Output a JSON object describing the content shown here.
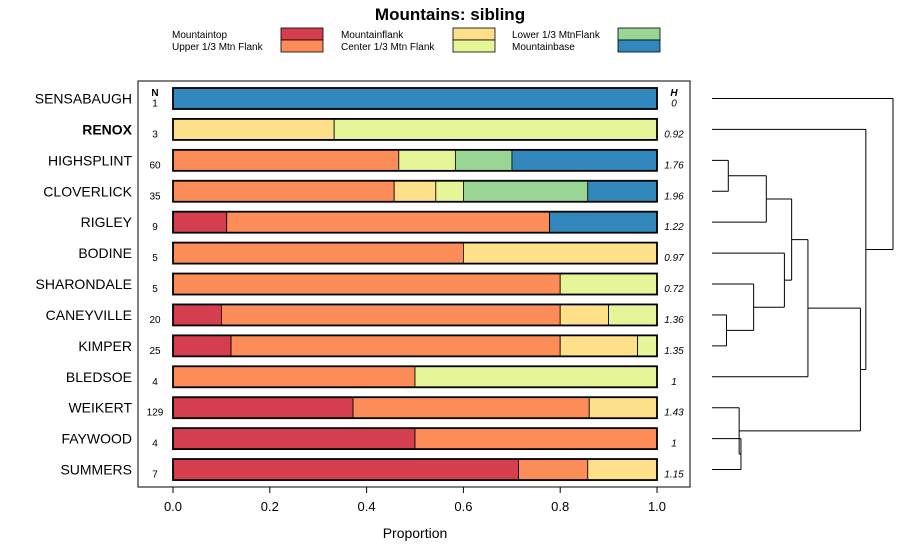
{
  "chart_data": {
    "type": "bar",
    "orientation": "horizontal",
    "stacked": "proportion",
    "title": "Mountains: sibling",
    "xlabel": "Proportion",
    "xlim": [
      0,
      1
    ],
    "xticks": [
      "0.0",
      "0.2",
      "0.4",
      "0.6",
      "0.8",
      "1.0"
    ],
    "n_header": "N",
    "h_header": "H",
    "series": [
      {
        "name": "Mountaintop",
        "color": "#d53e4f"
      },
      {
        "name": "Upper 1/3 Mtn Flank",
        "color": "#fc8d59"
      },
      {
        "name": "Mountainflank",
        "color": "#fee08b"
      },
      {
        "name": "Center 1/3 Mtn Flank",
        "color": "#e6f598"
      },
      {
        "name": "Lower 1/3 MtnFlank",
        "color": "#99d594"
      },
      {
        "name": "Mountainbase",
        "color": "#3288bd"
      }
    ],
    "legend_layout": [
      [
        "Mountaintop",
        "Mountainflank",
        "Lower 1/3 MtnFlank"
      ],
      [
        "Upper 1/3 Mtn Flank",
        "Center 1/3 Mtn Flank",
        "Mountainbase"
      ]
    ],
    "categories": [
      {
        "label": "SENSABAUGH",
        "n": "1",
        "h": "0",
        "bold": false,
        "segments": [
          {
            "series": "Mountainbase",
            "value": 1.0
          }
        ]
      },
      {
        "label": "RENOX",
        "n": "3",
        "h": "0.92",
        "bold": true,
        "segments": [
          {
            "series": "Mountainflank",
            "value": 0.333
          },
          {
            "series": "Center 1/3 Mtn Flank",
            "value": 0.667
          }
        ]
      },
      {
        "label": "HIGHSPLINT",
        "n": "60",
        "h": "1.76",
        "bold": false,
        "segments": [
          {
            "series": "Upper 1/3 Mtn Flank",
            "value": 0.467
          },
          {
            "series": "Center 1/3 Mtn Flank",
            "value": 0.117
          },
          {
            "series": "Lower 1/3 MtnFlank",
            "value": 0.117
          },
          {
            "series": "Mountainbase",
            "value": 0.3
          }
        ]
      },
      {
        "label": "CLOVERLICK",
        "n": "35",
        "h": "1.96",
        "bold": false,
        "segments": [
          {
            "series": "Upper 1/3 Mtn Flank",
            "value": 0.457
          },
          {
            "series": "Mountainflank",
            "value": 0.086
          },
          {
            "series": "Center 1/3 Mtn Flank",
            "value": 0.057
          },
          {
            "series": "Lower 1/3 MtnFlank",
            "value": 0.257
          },
          {
            "series": "Mountainbase",
            "value": 0.143
          }
        ]
      },
      {
        "label": "RIGLEY",
        "n": "9",
        "h": "1.22",
        "bold": false,
        "segments": [
          {
            "series": "Mountaintop",
            "value": 0.111
          },
          {
            "series": "Upper 1/3 Mtn Flank",
            "value": 0.667
          },
          {
            "series": "Mountainbase",
            "value": 0.222
          }
        ]
      },
      {
        "label": "BODINE",
        "n": "5",
        "h": "0.97",
        "bold": false,
        "segments": [
          {
            "series": "Upper 1/3 Mtn Flank",
            "value": 0.6
          },
          {
            "series": "Mountainflank",
            "value": 0.4
          }
        ]
      },
      {
        "label": "SHARONDALE",
        "n": "5",
        "h": "0.72",
        "bold": false,
        "segments": [
          {
            "series": "Upper 1/3 Mtn Flank",
            "value": 0.8
          },
          {
            "series": "Center 1/3 Mtn Flank",
            "value": 0.2
          }
        ]
      },
      {
        "label": "CANEYVILLE",
        "n": "20",
        "h": "1.36",
        "bold": false,
        "segments": [
          {
            "series": "Mountaintop",
            "value": 0.1
          },
          {
            "series": "Upper 1/3 Mtn Flank",
            "value": 0.7
          },
          {
            "series": "Mountainflank",
            "value": 0.1
          },
          {
            "series": "Center 1/3 Mtn Flank",
            "value": 0.1
          }
        ]
      },
      {
        "label": "KIMPER",
        "n": "25",
        "h": "1.35",
        "bold": false,
        "segments": [
          {
            "series": "Mountaintop",
            "value": 0.12
          },
          {
            "series": "Upper 1/3 Mtn Flank",
            "value": 0.68
          },
          {
            "series": "Mountainflank",
            "value": 0.16
          },
          {
            "series": "Center 1/3 Mtn Flank",
            "value": 0.04
          }
        ]
      },
      {
        "label": "BLEDSOE",
        "n": "4",
        "h": "1",
        "bold": false,
        "segments": [
          {
            "series": "Upper 1/3 Mtn Flank",
            "value": 0.5
          },
          {
            "series": "Center 1/3 Mtn Flank",
            "value": 0.5
          }
        ]
      },
      {
        "label": "WEIKERT",
        "n": "129",
        "h": "1.43",
        "bold": false,
        "segments": [
          {
            "series": "Mountaintop",
            "value": 0.372
          },
          {
            "series": "Upper 1/3 Mtn Flank",
            "value": 0.488
          },
          {
            "series": "Mountainflank",
            "value": 0.14
          }
        ]
      },
      {
        "label": "FAYWOOD",
        "n": "4",
        "h": "1",
        "bold": false,
        "segments": [
          {
            "series": "Mountaintop",
            "value": 0.5
          },
          {
            "series": "Upper 1/3 Mtn Flank",
            "value": 0.5
          }
        ]
      },
      {
        "label": "SUMMERS",
        "n": "7",
        "h": "1.15",
        "bold": false,
        "segments": [
          {
            "series": "Mountaintop",
            "value": 0.714
          },
          {
            "series": "Upper 1/3 Mtn Flank",
            "value": 0.143
          },
          {
            "series": "Mountainflank",
            "value": 0.143
          }
        ]
      }
    ],
    "dendrogram": {
      "leaf_order": [
        "SENSABAUGH",
        "RENOX",
        "HIGHSPLINT",
        "CLOVERLICK",
        "RIGLEY",
        "BODINE",
        "SHARONDALE",
        "CANEYVILLE",
        "KIMPER",
        "BLEDSOE",
        "WEIKERT",
        "FAYWOOD",
        "SUMMERS"
      ],
      "merges": [
        {
          "a": "HIGHSPLINT",
          "b": "CLOVERLICK",
          "height": 0.09
        },
        {
          "a": "CANEYVILLE",
          "b": "KIMPER",
          "height": 0.08
        },
        {
          "a": "FAYWOOD",
          "b": "SUMMERS",
          "height": 0.16
        },
        {
          "a": 0,
          "b": "RIGLEY",
          "height": 0.3
        },
        {
          "a": "SHARONDALE",
          "b": 1,
          "height": 0.23
        },
        {
          "a": 2,
          "b": "WEIKERT",
          "height": 0.15
        },
        {
          "a": "BODINE",
          "b": 4,
          "height": 0.4
        },
        {
          "a": 3,
          "b": 6,
          "height": 0.44
        },
        {
          "a": 7,
          "b": "BLEDSOE",
          "height": 0.53
        },
        {
          "a": 8,
          "b": 5,
          "height": 0.82
        },
        {
          "a": "RENOX",
          "b": 9,
          "height": 0.85
        },
        {
          "a": "SENSABAUGH",
          "b": 10,
          "height": 1.0
        }
      ]
    }
  }
}
